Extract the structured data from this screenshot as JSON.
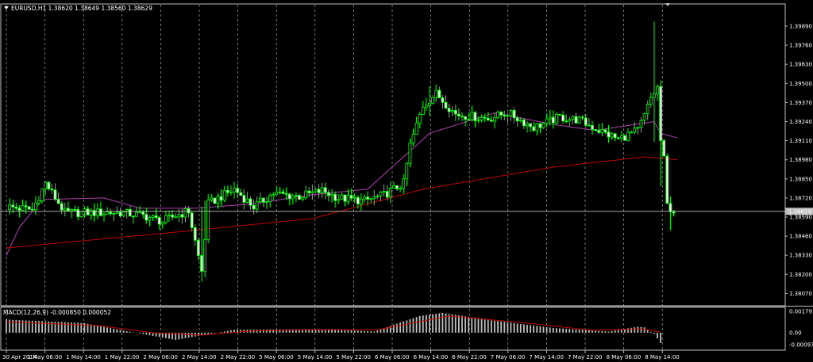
{
  "main_title": "EURUSD,H1  1.38620 1.38649 1.38560 1.38629",
  "macd_title": "MACD(12,26,9) -0.000850 0.000052",
  "colors": {
    "background": "#000000",
    "bull_candle": "#00ff00",
    "bear_candle": "#ffffff",
    "ma_fast": "#b040b0",
    "ma_slow": "#c00000",
    "macd_hist": "#c0c0c0",
    "macd_signal": "#c00000",
    "grid": "#c0c0c0",
    "frame": "#c0c0c0"
  },
  "chart_data": {
    "type": "candlestick",
    "symbol": "EURUSD",
    "timeframe": "H1",
    "ohlc_current": {
      "open": 1.3862,
      "high": 1.38649,
      "low": 1.3856,
      "close": 1.38629
    },
    "y_ticks": [
      "1.39890",
      "1.39760",
      "1.39630",
      "1.39500",
      "1.39370",
      "1.39240",
      "1.39110",
      "1.38980",
      "1.38850",
      "1.38720",
      "1.38590",
      "1.38460",
      "1.38330",
      "1.38200",
      "1.38070"
    ],
    "y_range": [
      1.3804,
      1.3996
    ],
    "current_price_label": "1.38629",
    "x_ticks": [
      "30 Apr 2014",
      "1 May 06:00",
      "1 May 14:00",
      "1 May 22:00",
      "2 May 06:00",
      "2 May 14:00",
      "2 May 22:00",
      "5 May 06:00",
      "5 May 14:00",
      "5 May 22:00",
      "6 May 06:00",
      "6 May 14:00",
      "6 May 22:00",
      "7 May 06:00",
      "7 May 14:00",
      "7 May 22:00",
      "8 May 06:00",
      "8 May 14:00"
    ],
    "grid": "vertical dashed",
    "ma_fast_anchors": [
      [
        0,
        1.3833
      ],
      [
        4,
        1.3852
      ],
      [
        11,
        1.3871
      ],
      [
        30,
        1.3872
      ],
      [
        41,
        1.3865
      ],
      [
        58,
        1.3865
      ],
      [
        76,
        1.3868
      ],
      [
        93,
        1.3874
      ],
      [
        111,
        1.3878
      ],
      [
        130,
        1.3916
      ],
      [
        150,
        1.393
      ],
      [
        168,
        1.3922
      ],
      [
        181,
        1.3918
      ],
      [
        199,
        1.3924
      ],
      [
        201,
        1.3916
      ],
      [
        206,
        1.3913
      ]
    ],
    "ma_slow_anchors": [
      [
        0,
        1.3838
      ],
      [
        58,
        1.385
      ],
      [
        94,
        1.3858
      ],
      [
        128,
        1.3878
      ],
      [
        168,
        1.3893
      ],
      [
        196,
        1.39
      ],
      [
        206,
        1.3898
      ]
    ],
    "macd": {
      "y_ticks": [
        "0.001791",
        "0.00",
        "-0.000979"
      ],
      "range": [
        -0.00112,
        0.00185
      ],
      "hist_anchors": [
        [
          0,
          0.0011
        ],
        [
          24,
          0.0008
        ],
        [
          36,
          0.00018
        ],
        [
          52,
          -0.0006
        ],
        [
          70,
          0.00025
        ],
        [
          100,
          0.0003
        ],
        [
          113,
          0.0001
        ],
        [
          127,
          0.0014
        ],
        [
          134,
          0.00165
        ],
        [
          150,
          0.001
        ],
        [
          168,
          0.0004
        ],
        [
          185,
          0.0001
        ],
        [
          194,
          0.0005
        ],
        [
          196,
          0.00045
        ],
        [
          199,
          -0.0001
        ],
        [
          201,
          -0.00085
        ]
      ],
      "signal_anchors": [
        [
          0,
          0.0009
        ],
        [
          28,
          0.0006
        ],
        [
          45,
          0.0
        ],
        [
          60,
          -0.0002
        ],
        [
          75,
          0.00015
        ],
        [
          95,
          0.00025
        ],
        [
          114,
          0.00025
        ],
        [
          136,
          0.0014
        ],
        [
          160,
          0.0008
        ],
        [
          180,
          0.0002
        ],
        [
          195,
          0.00032
        ],
        [
          201,
          5e-05
        ]
      ]
    },
    "price_path": [
      [
        0,
        1.3866
      ],
      [
        8,
        1.3864
      ],
      [
        12,
        1.3882
      ],
      [
        18,
        1.3862
      ],
      [
        28,
        1.3862
      ],
      [
        35,
        1.3862
      ],
      [
        42,
        1.386
      ],
      [
        48,
        1.3856
      ],
      [
        52,
        1.386
      ],
      [
        56,
        1.3863
      ],
      [
        60,
        1.3822
      ],
      [
        62,
        1.3868
      ],
      [
        70,
        1.3878
      ],
      [
        76,
        1.3866
      ],
      [
        82,
        1.3875
      ],
      [
        90,
        1.3873
      ],
      [
        97,
        1.3877
      ],
      [
        102,
        1.3872
      ],
      [
        110,
        1.387
      ],
      [
        116,
        1.3874
      ],
      [
        122,
        1.3882
      ],
      [
        124,
        1.3908
      ],
      [
        128,
        1.3935
      ],
      [
        132,
        1.3943
      ],
      [
        138,
        1.3929
      ],
      [
        148,
        1.3926
      ],
      [
        154,
        1.393
      ],
      [
        162,
        1.392
      ],
      [
        170,
        1.3927
      ],
      [
        176,
        1.3925
      ],
      [
        182,
        1.3918
      ],
      [
        188,
        1.3912
      ],
      [
        194,
        1.3918
      ],
      [
        196,
        1.3928
      ],
      [
        198,
        1.394
      ],
      [
        200,
        1.3947
      ],
      [
        201,
        1.3911
      ],
      [
        202,
        1.3898
      ],
      [
        203,
        1.3867
      ],
      [
        205,
        1.3863
      ]
    ]
  }
}
